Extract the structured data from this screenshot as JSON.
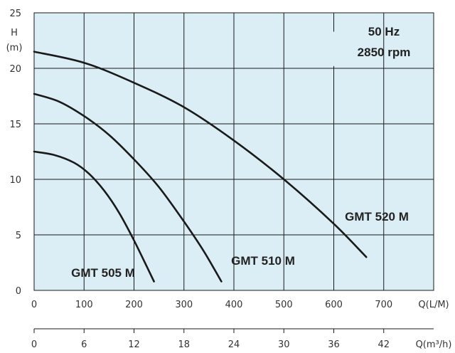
{
  "chart_data": {
    "type": "line",
    "notes": [
      "50 Hz",
      "2850 rpm"
    ],
    "xlabel": "Q(L/M)",
    "xlabel2": "Q(m³/h)",
    "ylabel_lines": [
      "H",
      "(m)"
    ],
    "xlim": [
      0,
      800
    ],
    "ylim": [
      0,
      25
    ],
    "x_ticks": [
      0,
      100,
      200,
      300,
      400,
      500,
      600,
      700
    ],
    "y_ticks": [
      0,
      5,
      10,
      15,
      20,
      25
    ],
    "x2_ticks": [
      0,
      6,
      12,
      18,
      24,
      30,
      36,
      42
    ],
    "grid": true,
    "series": [
      {
        "name": "GMT 505 M",
        "x": [
          0,
          40,
          80,
          110,
          140,
          170,
          200,
          225,
          240
        ],
        "y": [
          12.5,
          12.2,
          11.5,
          10.5,
          9.0,
          7.0,
          4.5,
          2.2,
          0.8
        ]
      },
      {
        "name": "GMT 510 M",
        "x": [
          0,
          50,
          100,
          150,
          200,
          250,
          300,
          340,
          375
        ],
        "y": [
          17.7,
          17.0,
          15.7,
          14.0,
          11.8,
          9.3,
          6.2,
          3.5,
          0.8
        ]
      },
      {
        "name": "GMT 520 M",
        "x": [
          0,
          100,
          200,
          300,
          400,
          500,
          600,
          665
        ],
        "y": [
          21.5,
          20.5,
          18.7,
          16.5,
          13.5,
          10.0,
          6.0,
          3.0
        ]
      }
    ]
  },
  "colors": {
    "plot_background": "#dbeef6",
    "grid": "#1a1a1a",
    "curve": "#1a1a1a"
  }
}
